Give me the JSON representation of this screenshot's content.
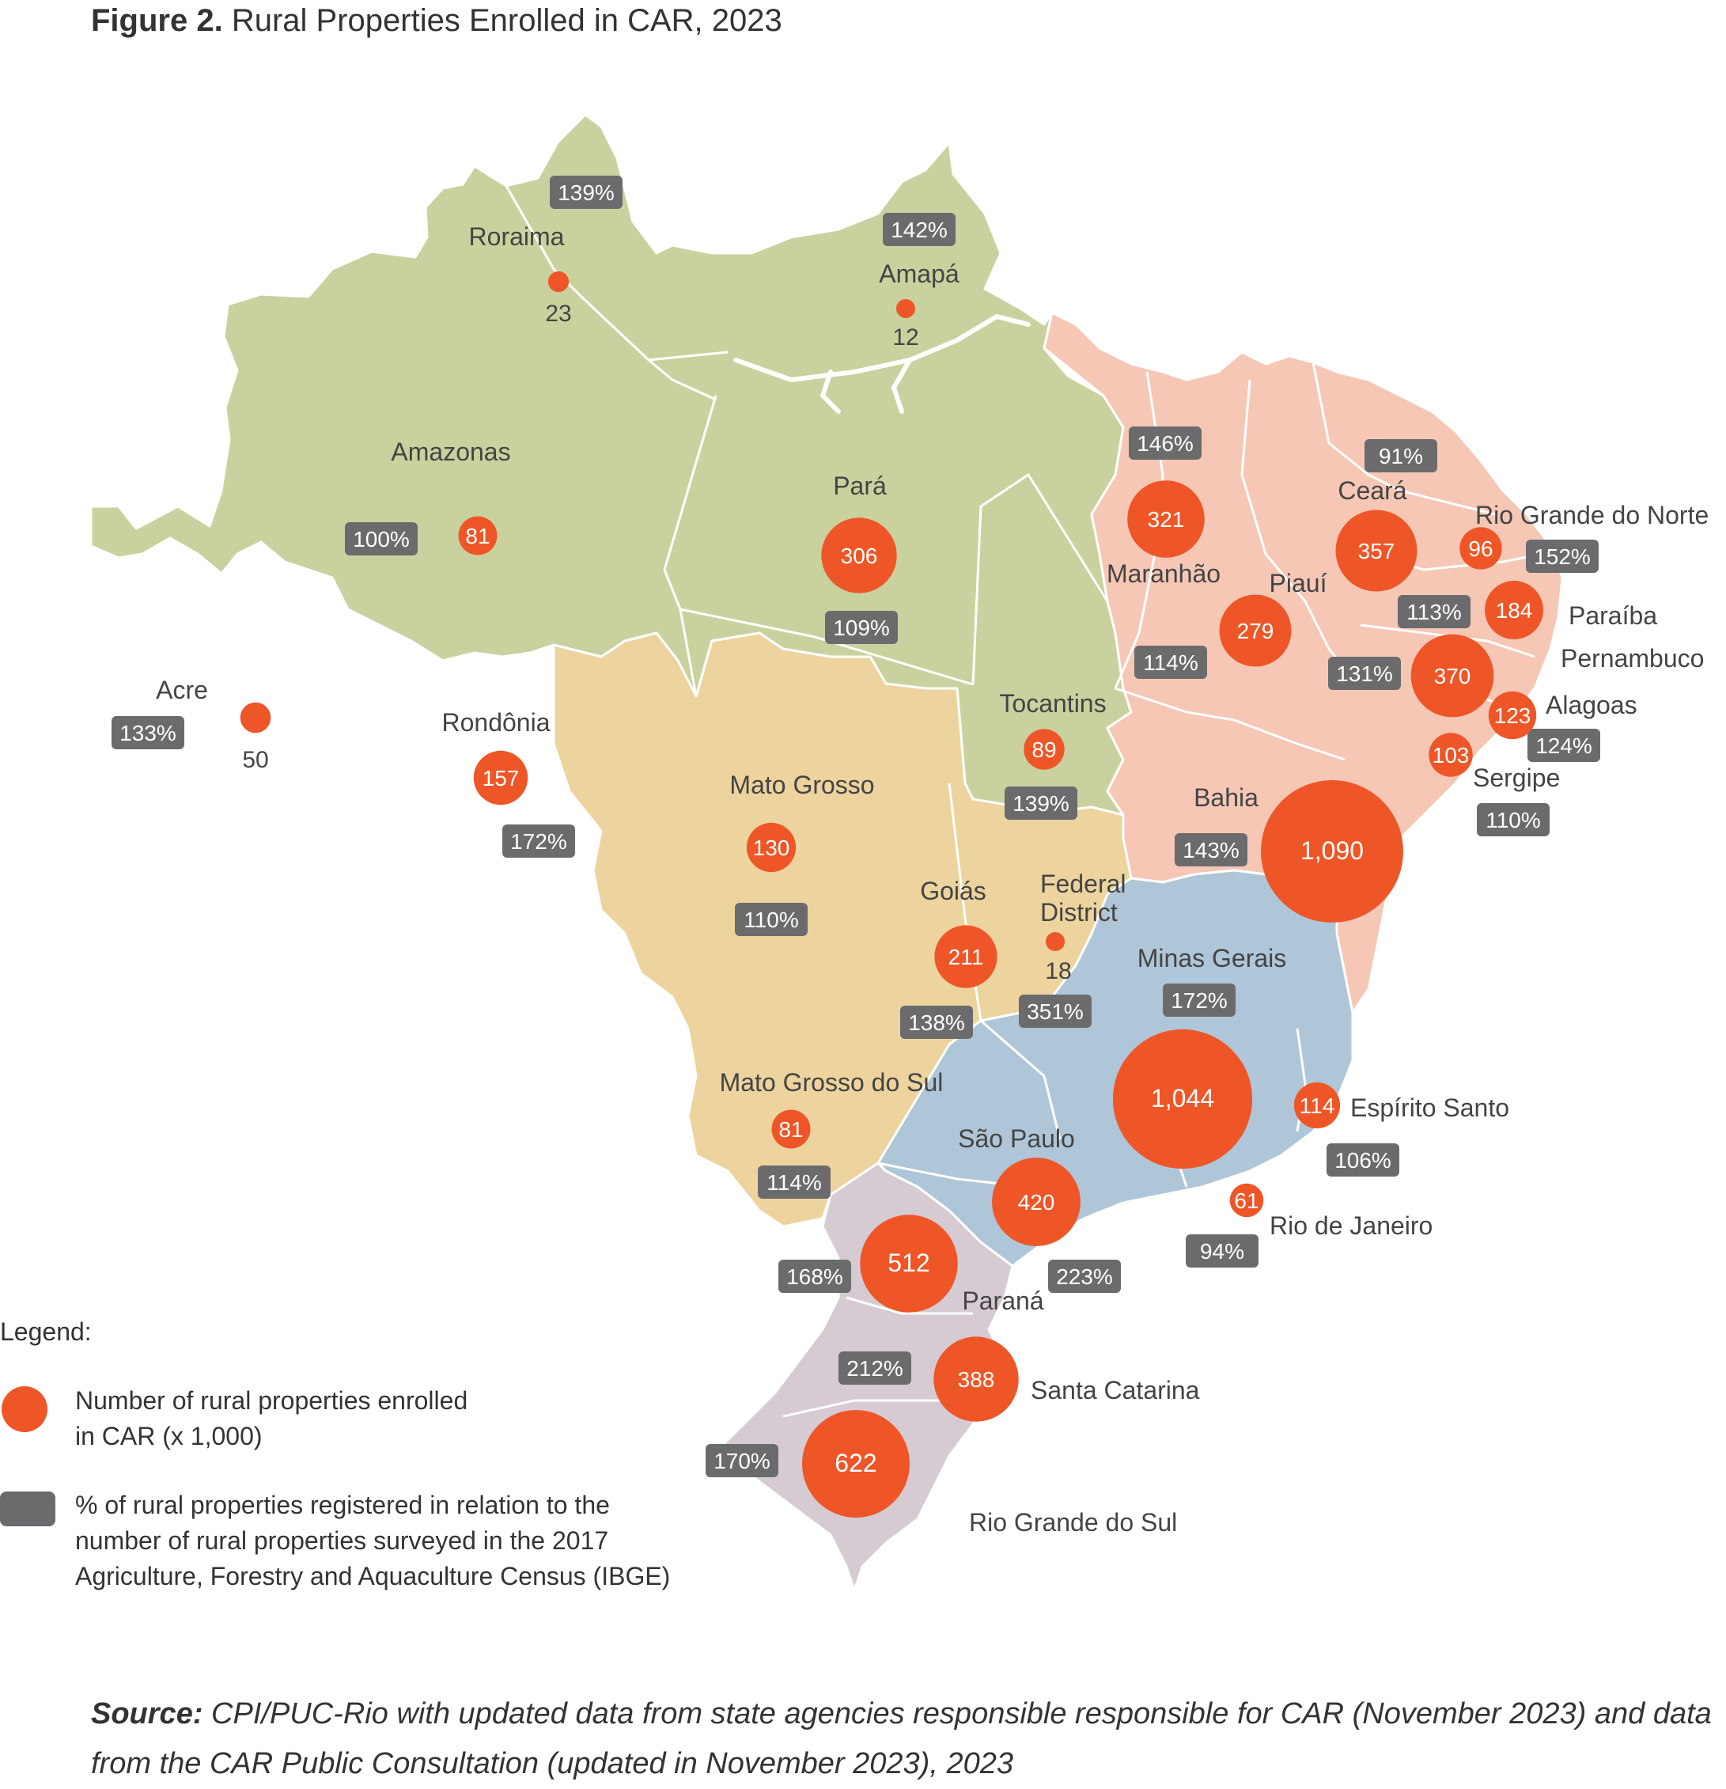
{
  "figure": {
    "label": "Figure 2.",
    "title": "Rural Properties Enrolled in CAR, 2023"
  },
  "colors": {
    "north": "#c9d29e",
    "northeast": "#f6c7b5",
    "center_west": "#edd39d",
    "southeast": "#afc6d8",
    "south": "#d6cbd3",
    "bubble": "#ee5628",
    "pct_box": "#6b6b6d"
  },
  "legend": {
    "title": "Legend:",
    "bubble_text_1": "Number of rural properties enrolled",
    "bubble_text_2": "in CAR (x 1,000)",
    "box_text_1": "% of rural properties registered in relation to the",
    "box_text_2": "number of rural properties surveyed in the 2017",
    "box_text_3": "Agriculture, Forestry and Aquaculture Census (IBGE)"
  },
  "source": {
    "label": "Source:",
    "text": "CPI/PUC-Rio with updated data from state agencies responsible responsible for CAR (November 2023) and data from the CAR Public Consultation (updated in November 2023), 2023"
  },
  "states": [
    {
      "name": "Roraima",
      "enrolled": "23",
      "value": 23,
      "pct": "139%"
    },
    {
      "name": "Amapá",
      "enrolled": "12",
      "value": 12,
      "pct": "142%"
    },
    {
      "name": "Amazonas",
      "enrolled": "81",
      "value": 81,
      "pct": "100%"
    },
    {
      "name": "Pará",
      "enrolled": "306",
      "value": 306,
      "pct": "109%"
    },
    {
      "name": "Acre",
      "enrolled": "50",
      "value": 50,
      "pct": "133%"
    },
    {
      "name": "Rondônia",
      "enrolled": "157",
      "value": 157,
      "pct": "172%"
    },
    {
      "name": "Tocantins",
      "enrolled": "89",
      "value": 89,
      "pct": "139%"
    },
    {
      "name": "Maranhão",
      "enrolled": "321",
      "value": 321,
      "pct": "146%"
    },
    {
      "name": "Piauí",
      "enrolled": "279",
      "value": 279,
      "pct": "114%"
    },
    {
      "name": "Ceará",
      "enrolled": "357",
      "value": 357,
      "pct": "91%"
    },
    {
      "name": "Rio Grande do Norte",
      "enrolled": "96",
      "value": 96,
      "pct": "152%"
    },
    {
      "name": "Paraíba",
      "enrolled": "184",
      "value": 184,
      "pct": "113%"
    },
    {
      "name": "Pernambuco",
      "enrolled": "370",
      "value": 370,
      "pct": "131%"
    },
    {
      "name": "Alagoas",
      "enrolled": "123",
      "value": 123,
      "pct": "124%"
    },
    {
      "name": "Sergipe",
      "enrolled": "103",
      "value": 103,
      "pct": "110%"
    },
    {
      "name": "Bahia",
      "enrolled": "1,090",
      "value": 1090,
      "pct": "143%"
    },
    {
      "name": "Mato Grosso",
      "enrolled": "130",
      "value": 130,
      "pct": "110%"
    },
    {
      "name": "Goiás",
      "enrolled": "211",
      "value": 211,
      "pct": "138%"
    },
    {
      "name": "Federal District",
      "enrolled": "18",
      "value": 18,
      "pct": "351%"
    },
    {
      "name": "Minas Gerais",
      "enrolled": "1,044",
      "value": 1044,
      "pct": "172%"
    },
    {
      "name": "Espírito Santo",
      "enrolled": "114",
      "value": 114,
      "pct": "106%"
    },
    {
      "name": "Mato Grosso do Sul",
      "enrolled": "81",
      "value": 81,
      "pct": "114%"
    },
    {
      "name": "São Paulo",
      "enrolled": "420",
      "value": 420,
      "pct": "223%"
    },
    {
      "name": "Rio de Janeiro",
      "enrolled": "61",
      "value": 61,
      "pct": "94%"
    },
    {
      "name": "Paraná",
      "enrolled": "512",
      "value": 512,
      "pct": "168%"
    },
    {
      "name": "Santa Catarina",
      "enrolled": "388",
      "value": 388,
      "pct": "212%"
    },
    {
      "name": "Rio Grande do Sul",
      "enrolled": "622",
      "value": 622,
      "pct": "170%"
    }
  ]
}
